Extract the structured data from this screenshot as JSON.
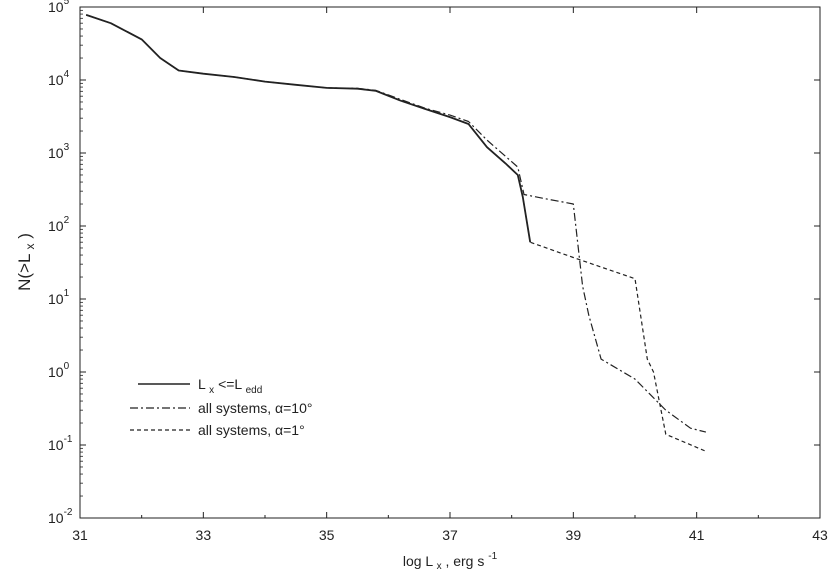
{
  "chart_data": {
    "type": "line",
    "title": "",
    "xlabel": {
      "main": "log L",
      "sub": "x",
      "rest": ", erg s",
      "sup": "-1"
    },
    "ylabel": {
      "pre": "N(>L",
      "sub": "x",
      "post": ")"
    },
    "xlim": [
      31,
      43
    ],
    "ylim": [
      0.01,
      100000
    ],
    "y_scale": "log",
    "xticks": [
      31,
      33,
      35,
      37,
      39,
      41,
      43
    ],
    "yticks": [
      {
        "base": "10",
        "exp": "-2",
        "value": 0.01
      },
      {
        "base": "10",
        "exp": "-1",
        "value": 0.1
      },
      {
        "base": "10",
        "exp": "0",
        "value": 1
      },
      {
        "base": "10",
        "exp": "1",
        "value": 10
      },
      {
        "base": "10",
        "exp": "2",
        "value": 100
      },
      {
        "base": "10",
        "exp": "3",
        "value": 1000
      },
      {
        "base": "10",
        "exp": "4",
        "value": 10000
      },
      {
        "base": "10",
        "exp": "5",
        "value": 100000
      }
    ],
    "grid": false,
    "legend_position": "lower-left",
    "series": [
      {
        "name": "L<=L",
        "legend": {
          "pre": "L",
          "sub1": "x",
          "mid": "<=L",
          "sub2": "edd"
        },
        "style": "solid",
        "x": [
          31.1,
          31.5,
          32.0,
          32.3,
          32.6,
          33.0,
          33.5,
          34.0,
          34.5,
          35.0,
          35.5,
          35.8,
          36.2,
          36.6,
          37.0,
          37.3,
          37.6,
          37.9,
          38.1,
          38.18,
          38.3
        ],
        "y": [
          78000,
          60000,
          36000,
          20000,
          13500,
          12200,
          11000,
          9500,
          8600,
          7800,
          7600,
          7100,
          5200,
          4000,
          3100,
          2500,
          1200,
          720,
          500,
          250,
          60
        ]
      },
      {
        "name": "all systems, α=10°",
        "style": "dashdot",
        "x": [
          31.1,
          31.5,
          32.0,
          32.3,
          32.6,
          33.0,
          33.5,
          34.0,
          34.5,
          35.0,
          35.5,
          35.8,
          36.2,
          36.6,
          37.0,
          37.3,
          37.6,
          37.9,
          38.1,
          38.2,
          38.5,
          39.0,
          39.15,
          39.25,
          39.45,
          40.0,
          40.5,
          40.9,
          41.15
        ],
        "y": [
          78000,
          60000,
          36000,
          20000,
          13500,
          12200,
          11000,
          9500,
          8600,
          7800,
          7700,
          7200,
          5400,
          4100,
          3300,
          2700,
          1500,
          900,
          640,
          270,
          240,
          200,
          15,
          6,
          1.5,
          0.8,
          0.3,
          0.17,
          0.15
        ]
      },
      {
        "name": "all systems, α=1°",
        "style": "dashed",
        "x": [
          31.1,
          31.5,
          32.0,
          32.3,
          32.6,
          33.0,
          33.5,
          34.0,
          34.5,
          35.0,
          35.5,
          35.8,
          36.2,
          36.6,
          37.0,
          37.3,
          37.6,
          37.9,
          38.1,
          38.18,
          38.3,
          39.0,
          40.0,
          40.2,
          40.3,
          40.5,
          41.15
        ],
        "y": [
          78000,
          60000,
          36000,
          20000,
          13500,
          12200,
          11000,
          9500,
          8600,
          7800,
          7600,
          7100,
          5200,
          4000,
          3100,
          2500,
          1200,
          720,
          500,
          250,
          60,
          37,
          19,
          1.5,
          1.0,
          0.14,
          0.082
        ]
      }
    ]
  }
}
